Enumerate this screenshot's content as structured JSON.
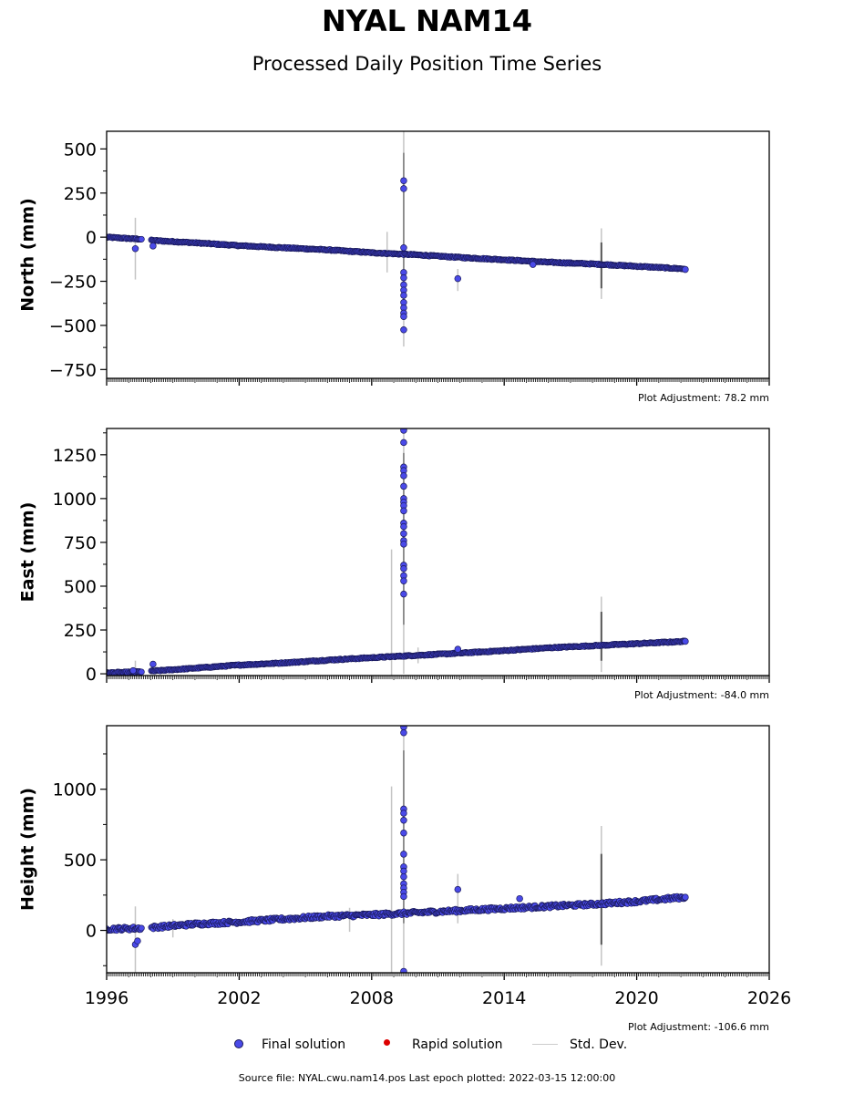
{
  "title": "NYAL NAM14",
  "subtitle": "Processed Daily Position Time Series",
  "legend": {
    "final": "Final solution",
    "rapid": "Rapid solution",
    "stddev": "Std. Dev."
  },
  "source_text": "Source file: NYAL.cwu.nam14.pos  Last epoch plotted: 2022-03-15 12:00:00",
  "colors": {
    "final": "#4a4ae8",
    "final_edge": "#1a1a5a",
    "rapid": "#dd0000",
    "stddev": "#c8c8c8"
  },
  "chart_data": [
    {
      "type": "scatter",
      "ylabel": "North (mm)",
      "xlim": [
        1996,
        2026
      ],
      "ylim": [
        -800,
        600
      ],
      "yticks": [
        500,
        250,
        0,
        -250,
        -500,
        -750
      ],
      "ytick_labels": [
        "500",
        "250",
        "0",
        "−250",
        "−500",
        "−750"
      ],
      "xticks": [
        1996,
        2002,
        2008,
        2014,
        2020,
        2026
      ],
      "adjustment": "Plot Adjustment: 78.2 mm",
      "series": [
        {
          "trend": [
            [
              1996.0,
              0
            ],
            [
              1997.6,
              -12
            ],
            [
              1998.0,
              -18
            ],
            [
              2000.0,
              -32
            ],
            [
              2002.0,
              -48
            ],
            [
              2004.0,
              -60
            ],
            [
              2006.0,
              -72
            ],
            [
              2008.0,
              -88
            ],
            [
              2010.0,
              -100
            ],
            [
              2012.0,
              -115
            ],
            [
              2014.0,
              -128
            ],
            [
              2016.0,
              -142
            ],
            [
              2018.0,
              -152
            ],
            [
              2020.0,
              -165
            ],
            [
              2022.2,
              -180
            ]
          ],
          "gaps": [
            [
              1997.6,
              1998.0
            ]
          ],
          "outliers": [
            [
              1997.3,
              -65
            ],
            [
              1998.1,
              -50
            ],
            [
              2009.45,
              320
            ],
            [
              2009.45,
              275
            ],
            [
              2009.45,
              -200
            ],
            [
              2009.45,
              -230
            ],
            [
              2009.45,
              -270
            ],
            [
              2009.45,
              -300
            ],
            [
              2009.45,
              -330
            ],
            [
              2009.45,
              -370
            ],
            [
              2009.45,
              -400
            ],
            [
              2009.45,
              -430
            ],
            [
              2009.45,
              -450
            ],
            [
              2009.45,
              -525
            ],
            [
              2009.45,
              -60
            ],
            [
              2011.9,
              -235
            ],
            [
              2015.3,
              -155
            ],
            [
              2022.2,
              -183
            ]
          ],
          "errorbars": [
            [
              1997.3,
              -240,
              110
            ],
            [
              2009.45,
              -620,
              600
            ],
            [
              2008.7,
              -200,
              30
            ],
            [
              2011.9,
              -305,
              -180
            ],
            [
              2018.4,
              -350,
              50
            ]
          ]
        }
      ]
    },
    {
      "type": "scatter",
      "ylabel": "East (mm)",
      "xlim": [
        1996,
        2026
      ],
      "ylim": [
        -10,
        1400
      ],
      "yticks": [
        1250,
        1000,
        750,
        500,
        250,
        0
      ],
      "ytick_labels": [
        "1250",
        "1000",
        "750",
        "500",
        "250",
        "0"
      ],
      "xticks": [
        1996,
        2002,
        2008,
        2014,
        2020,
        2026
      ],
      "adjustment": "Plot Adjustment: -84.0 mm",
      "series": [
        {
          "trend": [
            [
              1996.0,
              5
            ],
            [
              1997.6,
              12
            ],
            [
              1998.0,
              15
            ],
            [
              2000.0,
              32
            ],
            [
              2002.0,
              50
            ],
            [
              2004.0,
              62
            ],
            [
              2006.0,
              78
            ],
            [
              2008.0,
              92
            ],
            [
              2010.0,
              105
            ],
            [
              2012.0,
              118
            ],
            [
              2014.0,
              132
            ],
            [
              2016.0,
              148
            ],
            [
              2018.0,
              160
            ],
            [
              2020.0,
              172
            ],
            [
              2022.2,
              185
            ]
          ],
          "gaps": [
            [
              1997.6,
              1998.0
            ]
          ],
          "outliers": [
            [
              1997.2,
              18
            ],
            [
              1998.1,
              55
            ],
            [
              2009.45,
              1390
            ],
            [
              2009.45,
              1320
            ],
            [
              2009.45,
              1180
            ],
            [
              2009.45,
              1160
            ],
            [
              2009.45,
              1130
            ],
            [
              2009.45,
              1070
            ],
            [
              2009.45,
              1000
            ],
            [
              2009.45,
              980
            ],
            [
              2009.45,
              960
            ],
            [
              2009.45,
              930
            ],
            [
              2009.45,
              860
            ],
            [
              2009.45,
              840
            ],
            [
              2009.45,
              800
            ],
            [
              2009.45,
              760
            ],
            [
              2009.45,
              740
            ],
            [
              2009.45,
              620
            ],
            [
              2009.45,
              600
            ],
            [
              2009.45,
              560
            ],
            [
              2009.45,
              530
            ],
            [
              2009.45,
              455
            ],
            [
              2011.9,
              140
            ],
            [
              2022.2,
              185
            ]
          ],
          "errorbars": [
            [
              1997.3,
              -10,
              75
            ],
            [
              2008.9,
              -10,
              710
            ],
            [
              2009.45,
              0,
              1400
            ],
            [
              2010.1,
              60,
              150
            ],
            [
              2018.4,
              10,
              440
            ]
          ]
        }
      ]
    },
    {
      "type": "scatter",
      "ylabel": "Height (mm)",
      "xlim": [
        1996,
        2026
      ],
      "ylim": [
        -300,
        1450
      ],
      "yticks": [
        1000,
        500,
        0
      ],
      "ytick_labels": [
        "1000",
        "500",
        "0"
      ],
      "xticks": [
        1996,
        2002,
        2008,
        2014,
        2020,
        2026
      ],
      "xtick_labels": [
        "1996",
        "2002",
        "2008",
        "2014",
        "2020",
        "2026"
      ],
      "adjustment": "Plot Adjustment: -106.6 mm",
      "series": [
        {
          "trend": [
            [
              1996.0,
              10
            ],
            [
              1997.6,
              15
            ],
            [
              1998.0,
              20
            ],
            [
              2000.0,
              45
            ],
            [
              2002.0,
              60
            ],
            [
              2004.0,
              80
            ],
            [
              2006.0,
              100
            ],
            [
              2008.0,
              110
            ],
            [
              2010.0,
              125
            ],
            [
              2012.0,
              140
            ],
            [
              2014.0,
              155
            ],
            [
              2016.0,
              170
            ],
            [
              2018.0,
              185
            ],
            [
              2020.0,
              205
            ],
            [
              2022.2,
              235
            ]
          ],
          "gaps": [
            [
              1997.6,
              1998.0
            ]
          ],
          "outliers": [
            [
              1997.3,
              -100
            ],
            [
              1997.4,
              -75
            ],
            [
              2009.45,
              1440
            ],
            [
              2009.45,
              1400
            ],
            [
              2009.45,
              860
            ],
            [
              2009.45,
              830
            ],
            [
              2009.45,
              780
            ],
            [
              2009.45,
              690
            ],
            [
              2009.45,
              540
            ],
            [
              2009.45,
              450
            ],
            [
              2009.45,
              420
            ],
            [
              2009.45,
              380
            ],
            [
              2009.45,
              330
            ],
            [
              2009.45,
              300
            ],
            [
              2009.45,
              270
            ],
            [
              2009.45,
              240
            ],
            [
              2009.45,
              -290
            ],
            [
              2011.9,
              290
            ],
            [
              2014.7,
              225
            ],
            [
              2022.2,
              235
            ]
          ],
          "errorbars": [
            [
              1997.3,
              -300,
              170
            ],
            [
              1999.0,
              -50,
              80
            ],
            [
              2007.0,
              -10,
              160
            ],
            [
              2008.9,
              -300,
              1020
            ],
            [
              2009.45,
              -300,
              1450
            ],
            [
              2011.9,
              50,
              400
            ],
            [
              2018.4,
              -250,
              740
            ]
          ]
        }
      ]
    }
  ]
}
